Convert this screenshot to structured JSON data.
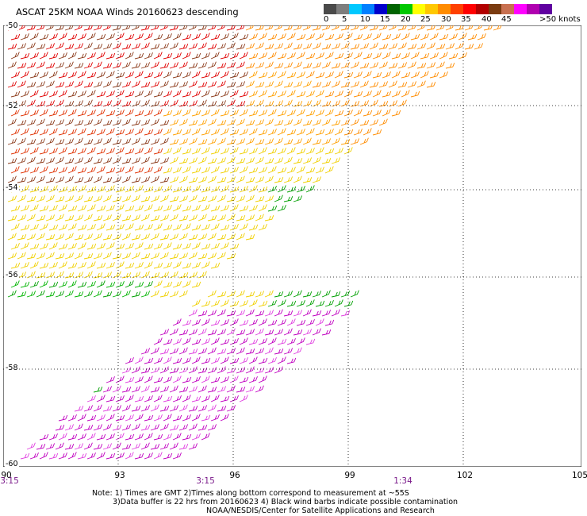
{
  "title": "ASCAT 25KM NOAA Winds 20160623 descending",
  "colorbar": {
    "colors": [
      "#4a4a4a",
      "#7e7e7e",
      "#00c8ff",
      "#0080ff",
      "#0000cc",
      "#006400",
      "#00c800",
      "#ffff00",
      "#ffc800",
      "#ff8c00",
      "#ff4000",
      "#ff0000",
      "#b20000",
      "#7a3b10",
      "#c87050",
      "#ff00ff",
      "#b000b0",
      "#6000a0"
    ],
    "labels": [
      "0",
      "5",
      "10",
      "15",
      "20",
      "25",
      "30",
      "35",
      "40",
      "45",
      ">50 knots"
    ]
  },
  "map": {
    "lat_labels": [
      "-50",
      "-52",
      "-54",
      "-56",
      "-58",
      "-60"
    ],
    "lon_labels": [
      "90",
      "93",
      "96",
      "99",
      "102",
      "105"
    ],
    "time_labels": [
      "3:15",
      "3:15",
      "1:34"
    ]
  },
  "notes": [
    "Note: 1) Times are GMT 2)Times along bottom correspond to measurement at ~55S",
    "3)Data buffer is 22 hrs from 20160623 4) Black wind barbs indicate possible contamination",
    "NOAA/NESDIS/Center for Satellite Applications and Research"
  ]
}
